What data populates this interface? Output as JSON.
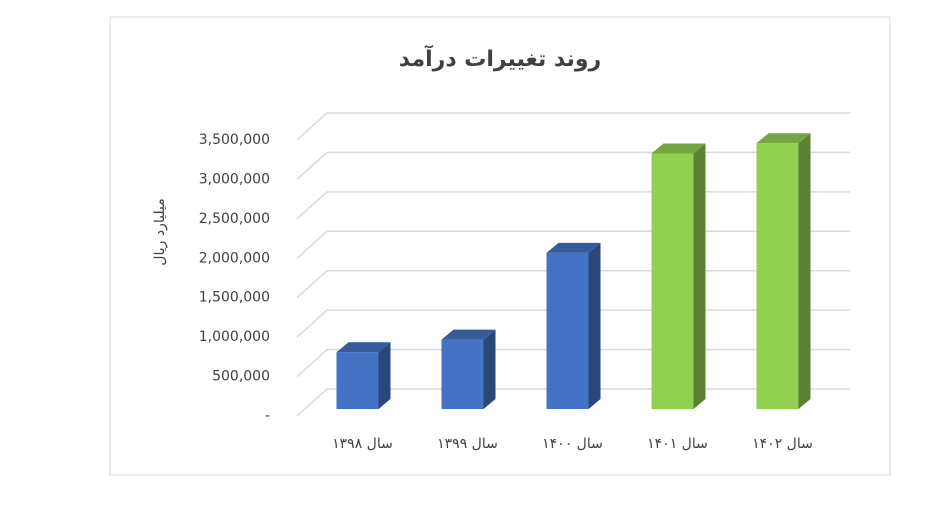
{
  "chart_data": {
    "type": "bar",
    "title": "روند تغییرات درآمد",
    "y_label": "میلیارد ریال",
    "categories": [
      "سال ۱۳۹۸",
      "سال ۱۳۹۹",
      "سال ۱۴۰۰",
      "سال ۱۴۰۱",
      "سال ۱۴۰۲"
    ],
    "values": [
      720000,
      880000,
      1980000,
      3240000,
      3370000
    ],
    "colors": [
      "#4472c4",
      "#4472c4",
      "#4472c4",
      "#92d050",
      "#92d050"
    ],
    "ylim": [
      0,
      3500000
    ],
    "yticks": [
      {
        "value": 0,
        "label": "-"
      },
      {
        "value": 500000,
        "label": "500,000"
      },
      {
        "value": 1000000,
        "label": "1,000,000"
      },
      {
        "value": 1500000,
        "label": "1,500,000"
      },
      {
        "value": 2000000,
        "label": "2,000,000"
      },
      {
        "value": 2500000,
        "label": "2,500,000"
      },
      {
        "value": 3000000,
        "label": "3,000,000"
      },
      {
        "value": 3500000,
        "label": "3,500,000"
      }
    ],
    "grid": true
  }
}
